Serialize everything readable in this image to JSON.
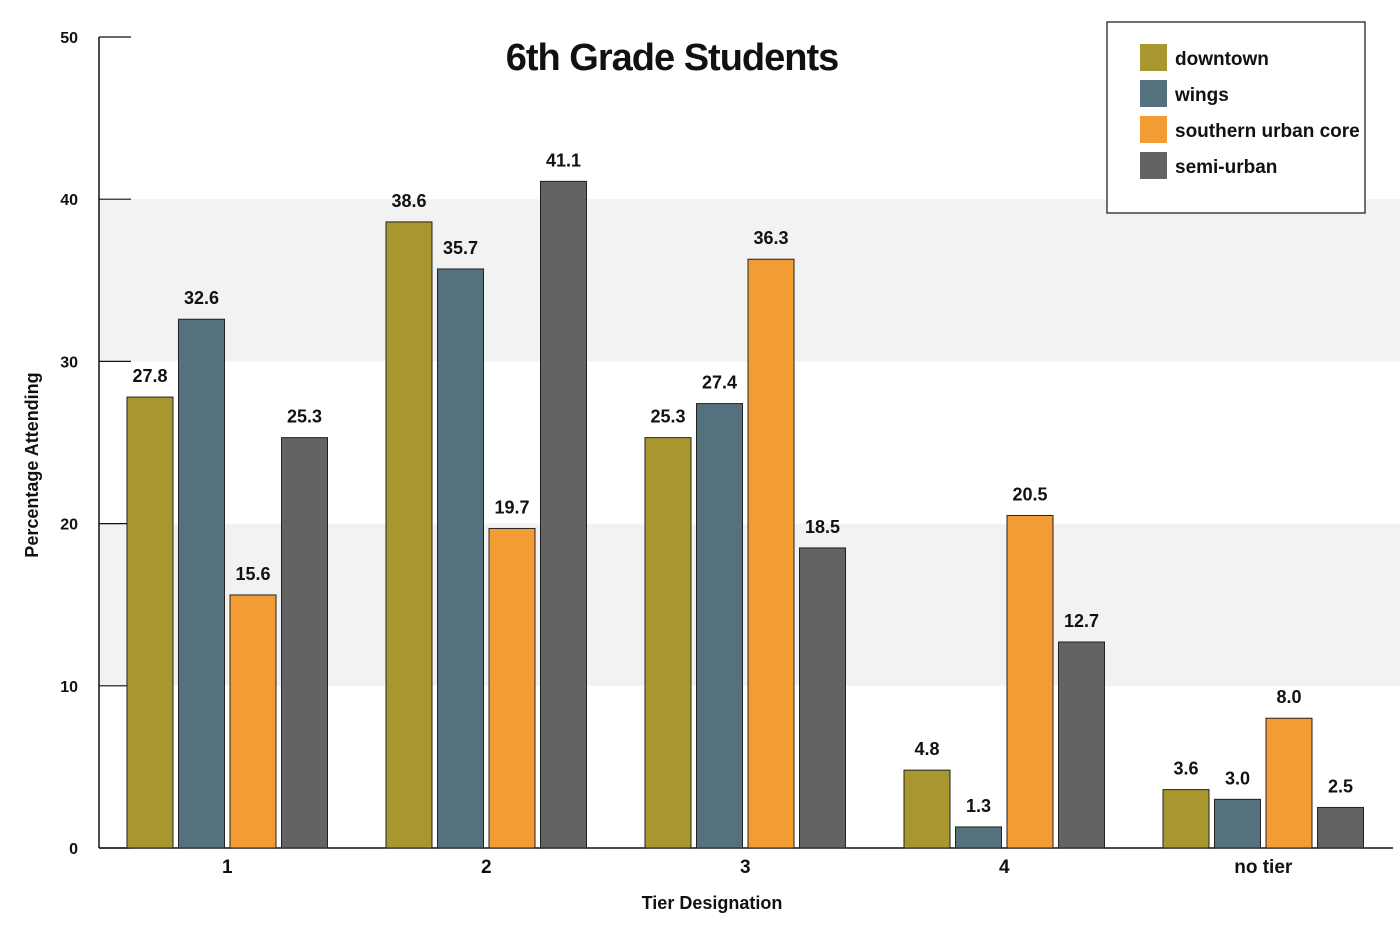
{
  "chart_data": {
    "type": "bar",
    "title": "6th Grade Students",
    "xlabel": "Tier Designation",
    "ylabel": "Percentage Attending",
    "ylim": [
      0,
      50
    ],
    "yticks": [
      0,
      10,
      20,
      30,
      40,
      50
    ],
    "grid": "alternating horizontal bands",
    "legend_position": "top-right",
    "categories": [
      "1",
      "2",
      "3",
      "4",
      "no tier"
    ],
    "series": [
      {
        "name": "downtown",
        "color": "#a8962f",
        "values": [
          27.8,
          38.6,
          25.3,
          4.8,
          3.6
        ],
        "labels": [
          "27.8",
          "38.6",
          "25.3",
          "4.8",
          "3.6"
        ]
      },
      {
        "name": "wings",
        "color": "#56717e",
        "values": [
          32.6,
          35.7,
          27.4,
          1.3,
          3.0
        ],
        "labels": [
          "32.6",
          "35.7",
          "27.4",
          "1.3",
          "3.0"
        ]
      },
      {
        "name": "southern urban core",
        "color": "#f39c34",
        "values": [
          15.6,
          19.7,
          36.3,
          20.5,
          8.0
        ],
        "labels": [
          "15.6",
          "19.7",
          "36.3",
          "20.5",
          "8.0"
        ]
      },
      {
        "name": "semi-urban",
        "color": "#636363",
        "values": [
          25.3,
          41.1,
          18.5,
          12.7,
          2.5
        ],
        "labels": [
          "25.3",
          "41.1",
          "18.5",
          "12.7",
          "2.5"
        ]
      }
    ]
  }
}
